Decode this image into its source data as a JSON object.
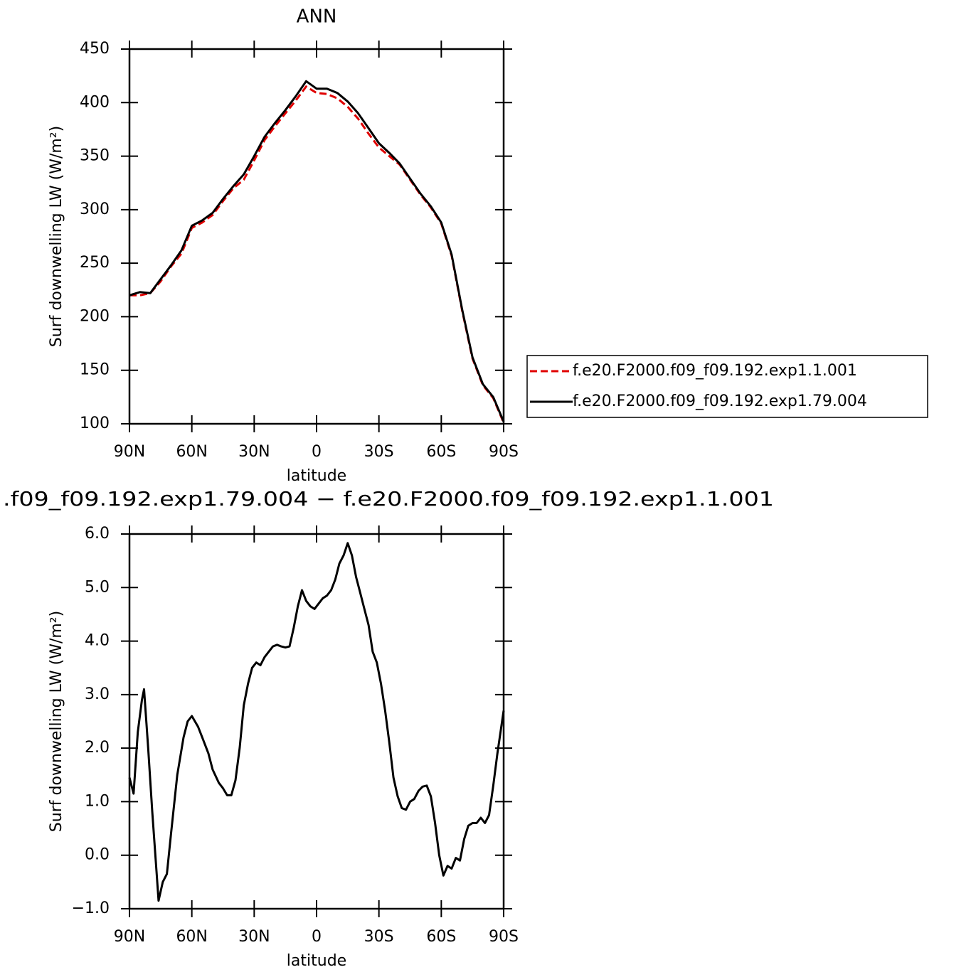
{
  "chart_data": [
    {
      "type": "line",
      "title": "ANN",
      "xlabel": "latitude",
      "ylabel": "Surf downwelling LW (W/m²)",
      "x": [
        90,
        85,
        80,
        75,
        70,
        65,
        60,
        55,
        50,
        45,
        40,
        35,
        30,
        25,
        20,
        15,
        10,
        5,
        0,
        -5,
        -10,
        -15,
        -20,
        -25,
        -30,
        -35,
        -40,
        -45,
        -50,
        -55,
        -60,
        -65,
        -70,
        -75,
        -80,
        -85,
        -90
      ],
      "series": [
        {
          "name": "f.e20.F2000.f09_f09.192.exp1.1.001",
          "color": "#e00000",
          "dash": true,
          "values": [
            220,
            220,
            222,
            233,
            247,
            259,
            283,
            288,
            295,
            308,
            320,
            328,
            346,
            365,
            378,
            390,
            402,
            415,
            409,
            408,
            404,
            396,
            385,
            371,
            358,
            350,
            342,
            328,
            314,
            302,
            287,
            257,
            206,
            161,
            136,
            124,
            101
          ]
        },
        {
          "name": "f.e20.F2000.f09_f09.192.exp1.79.004",
          "color": "#000000",
          "dash": false,
          "values": [
            220,
            223,
            222,
            235,
            248,
            262,
            285,
            290,
            297,
            310,
            322,
            333,
            350,
            368,
            381,
            393,
            406,
            420,
            413,
            413,
            409,
            401,
            390,
            376,
            362,
            353,
            343,
            329,
            315,
            303,
            288,
            258,
            207,
            162,
            137,
            125,
            102
          ]
        }
      ],
      "xlim": [
        90,
        -90
      ],
      "xticks": [
        {
          "value": 90,
          "label": "90N"
        },
        {
          "value": 60,
          "label": "60N"
        },
        {
          "value": 30,
          "label": "30N"
        },
        0,
        {
          "value": -30,
          "label": "30S"
        },
        {
          "value": -60,
          "label": "60S"
        },
        {
          "value": -90,
          "label": "90S"
        }
      ],
      "ylim": [
        100,
        450
      ],
      "yticks": [
        100,
        150,
        200,
        250,
        300,
        350,
        400,
        450
      ],
      "legend": "right"
    },
    {
      "type": "line",
      "title": ".f09_f09.192.exp1.79.004 − f.e20.F2000.f09_f09.192.exp1.1.001",
      "xlabel": "latitude",
      "ylabel": "Surf downwelling LW (W/m²)",
      "x": [
        90,
        88,
        86,
        84,
        83,
        81,
        79,
        77,
        76,
        74,
        72,
        70,
        67,
        64,
        62,
        60,
        57,
        55,
        52,
        50,
        47,
        45,
        43,
        41,
        39,
        37,
        35,
        33,
        31,
        29,
        27,
        25,
        23,
        21,
        19,
        17,
        15,
        13,
        11,
        9,
        7,
        5,
        3,
        1,
        -1,
        -3,
        -5,
        -7,
        -9,
        -11,
        -13,
        -15,
        -17,
        -19,
        -21,
        -23,
        -25,
        -27,
        -29,
        -31,
        -33,
        -35,
        -37,
        -39,
        -41,
        -43,
        -45,
        -47,
        -49,
        -51,
        -53,
        -55,
        -57,
        -59,
        -61,
        -63,
        -65,
        -67,
        -69,
        -71,
        -73,
        -75,
        -77,
        -79,
        -81,
        -83,
        -85,
        -87,
        -90
      ],
      "color": "#000000",
      "values": [
        1.45,
        1.15,
        2.3,
        2.9,
        3.1,
        2.0,
        0.8,
        -0.3,
        -0.85,
        -0.5,
        -0.35,
        0.4,
        1.5,
        2.2,
        2.5,
        2.6,
        2.4,
        2.2,
        1.9,
        1.6,
        1.35,
        1.25,
        1.12,
        1.12,
        1.4,
        2.0,
        2.8,
        3.2,
        3.5,
        3.6,
        3.55,
        3.7,
        3.8,
        3.9,
        3.93,
        3.9,
        3.88,
        3.9,
        4.25,
        4.65,
        4.95,
        4.75,
        4.65,
        4.6,
        4.7,
        4.8,
        4.85,
        4.95,
        5.15,
        5.45,
        5.6,
        5.83,
        5.6,
        5.2,
        4.9,
        4.6,
        4.3,
        3.8,
        3.6,
        3.2,
        2.7,
        2.1,
        1.45,
        1.1,
        0.88,
        0.85,
        1.0,
        1.05,
        1.2,
        1.28,
        1.3,
        1.1,
        0.6,
        0.0,
        -0.38,
        -0.2,
        -0.25,
        -0.05,
        -0.1,
        0.3,
        0.55,
        0.6,
        0.6,
        0.7,
        0.6,
        0.75,
        1.3,
        1.9,
        2.7
      ],
      "xlim": [
        90,
        -90
      ],
      "xticks": [
        {
          "value": 90,
          "label": "90N"
        },
        {
          "value": 60,
          "label": "60N"
        },
        {
          "value": 30,
          "label": "30N"
        },
        0,
        {
          "value": -30,
          "label": "30S"
        },
        {
          "value": -60,
          "label": "60S"
        },
        {
          "value": -90,
          "label": "90S"
        }
      ],
      "ylim": [
        -1,
        6
      ],
      "yticks": [
        {
          "value": -1,
          "label": "−1.0"
        },
        {
          "value": 0,
          "label": "0.0"
        },
        {
          "value": 1,
          "label": "1.0"
        },
        {
          "value": 2,
          "label": "2.0"
        },
        {
          "value": 3,
          "label": "3.0"
        },
        {
          "value": 4,
          "label": "4.0"
        },
        {
          "value": 5,
          "label": "5.0"
        },
        {
          "value": 6,
          "label": "6.0"
        }
      ]
    }
  ]
}
